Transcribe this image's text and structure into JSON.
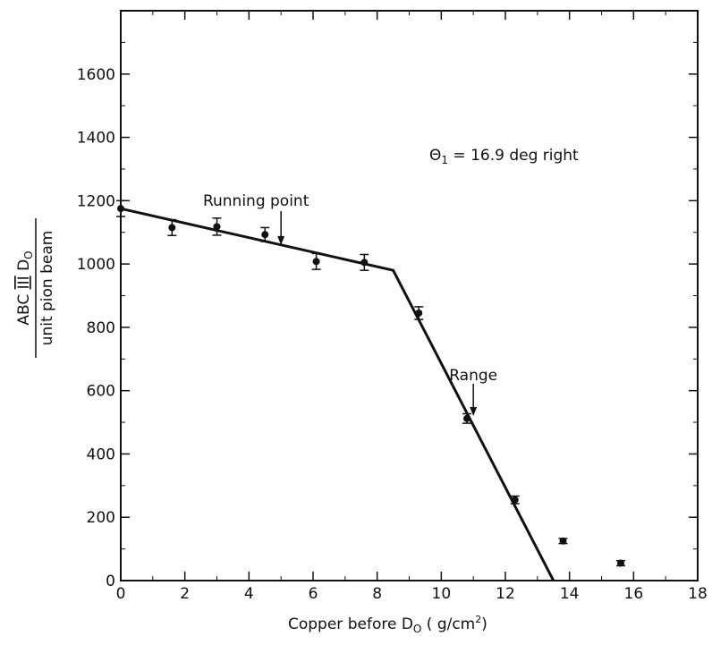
{
  "chart_data": {
    "type": "scatter",
    "x_axis": {
      "label_main": "Copper before D",
      "label_sub": "O",
      "label_units_open": " ( g/cm",
      "label_units_sup": "2",
      "label_units_close": ")",
      "range": [
        0,
        18
      ],
      "ticks": [
        0,
        2,
        4,
        6,
        8,
        10,
        12,
        14,
        16,
        18
      ],
      "tick_labels": [
        "0",
        "2",
        "4",
        "6",
        "8",
        "10",
        "12",
        "14",
        "16",
        "18"
      ]
    },
    "y_axis": {
      "label_numerator_main": "ABC",
      "label_numerator_roman": "III",
      "label_numerator_d": "D",
      "label_numerator_sub": "O",
      "label_denominator": "unit pion beam",
      "range": [
        0,
        1800
      ],
      "ticks": [
        0,
        200,
        400,
        600,
        800,
        1000,
        1200,
        1400,
        1600
      ],
      "tick_labels": [
        "0",
        "200",
        "400",
        "600",
        "800",
        "1000",
        "1200",
        "1400",
        "1600"
      ]
    },
    "series": [
      {
        "points": [
          {
            "x": 0.0,
            "y": 1175,
            "err": 25
          },
          {
            "x": 1.6,
            "y": 1115,
            "err": 25
          },
          {
            "x": 3.0,
            "y": 1118,
            "err": 27
          },
          {
            "x": 4.5,
            "y": 1093,
            "err": 22
          },
          {
            "x": 6.1,
            "y": 1008,
            "err": 25
          },
          {
            "x": 7.6,
            "y": 1005,
            "err": 25
          },
          {
            "x": 9.3,
            "y": 845,
            "err": 20
          },
          {
            "x": 10.8,
            "y": 512,
            "err": 15
          },
          {
            "x": 12.3,
            "y": 255,
            "err": 12
          },
          {
            "x": 13.8,
            "y": 125,
            "err": 8
          },
          {
            "x": 15.6,
            "y": 55,
            "err": 8
          }
        ]
      }
    ],
    "fit_line": [
      {
        "x": 0.0,
        "y": 1175
      },
      {
        "x": 8.5,
        "y": 980
      },
      {
        "x": 13.5,
        "y": 0
      }
    ],
    "annotations": {
      "theta_symbol": "Θ",
      "theta_sub": "1",
      "theta_text": " = 16.9 deg right",
      "running_point_label": "Running point",
      "running_point_x": 5.0,
      "running_point_y": 1060,
      "range_label": "Range",
      "range_x": 11.0,
      "range_y": 520
    }
  }
}
